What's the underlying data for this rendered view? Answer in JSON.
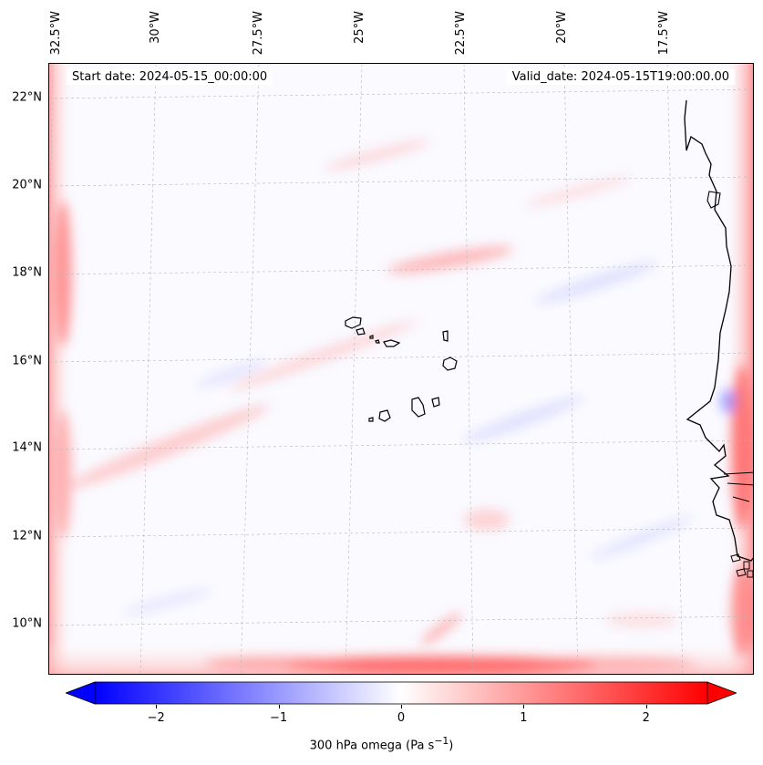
{
  "map": {
    "start_date": "Start date: 2024-05-15_00:00:00",
    "valid_date": "Valid_date: 2024-05-15T19:00:00.00",
    "lat_labels": [
      "22°N",
      "20°N",
      "18°N",
      "16°N",
      "14°N",
      "12°N",
      "10°N"
    ],
    "lon_labels": [
      "32.5°W",
      "30°W",
      "27.5°W",
      "25°W",
      "22.5°W",
      "20°W",
      "17.5°W"
    ],
    "islands": [
      "Santo Antão",
      "São Vicente",
      "Santa Luzia",
      "São Nicolau",
      "Sal",
      "Boa Vista",
      "Maio",
      "Santiago",
      "Fogo",
      "Brava"
    ],
    "colors": {
      "negative": "#0000ff",
      "zero": "#ffffff",
      "positive": "#ff0000",
      "coast": "#000000",
      "grid": "#b0b0b0"
    }
  },
  "colorbar": {
    "ticks": [
      "−2",
      "−1",
      "0",
      "1",
      "2"
    ],
    "tick_values": [
      -2,
      -1,
      0,
      1,
      2
    ],
    "range": [
      -2.5,
      2.5
    ],
    "label": "300 hPa omega (Pa s",
    "label_sup": "−1",
    "label_end": ")"
  }
}
